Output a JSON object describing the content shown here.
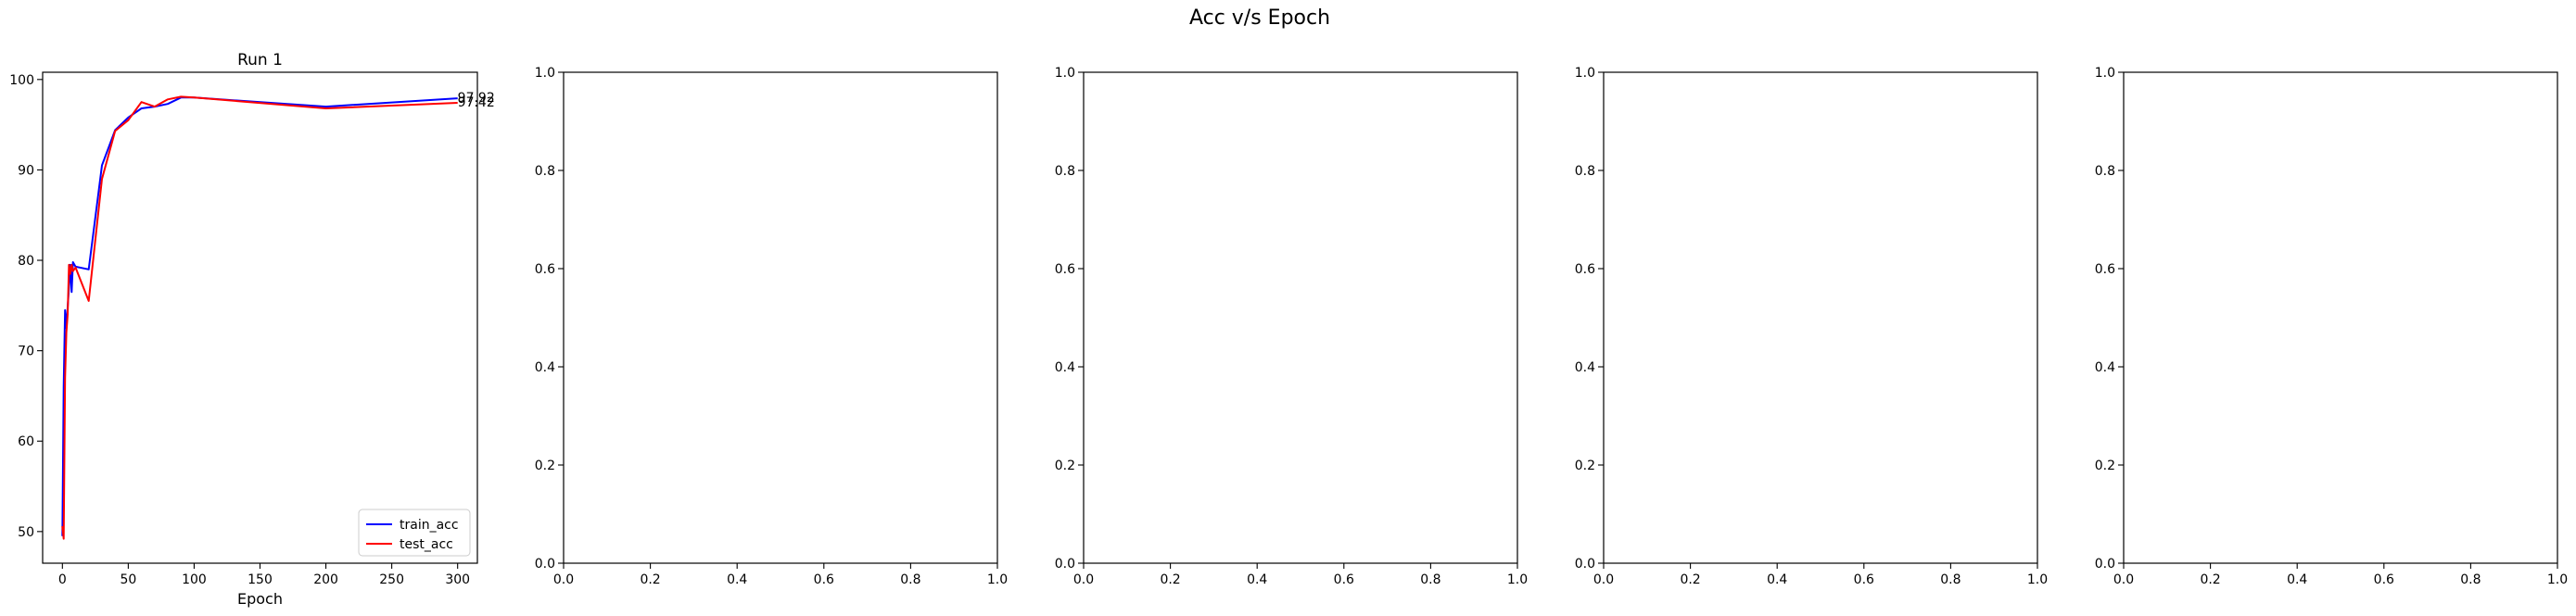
{
  "figure": {
    "suptitle": "Acc v/s Epoch"
  },
  "chart_data": [
    {
      "type": "line",
      "title": "Run 1",
      "xlabel": "Epoch",
      "ylabel": "",
      "xlim": [
        -15,
        315
      ],
      "ylim": [
        46.5,
        100.8
      ],
      "xticks": [
        0,
        50,
        100,
        150,
        200,
        250,
        300
      ],
      "yticks": [
        50,
        60,
        70,
        80,
        90,
        100
      ],
      "legend": "lower-right",
      "grid": false,
      "series": [
        {
          "name": "train_acc",
          "color": "#0000ff",
          "x": [
            0,
            1,
            2,
            3,
            4,
            5,
            6,
            7,
            8,
            10,
            20,
            30,
            40,
            50,
            60,
            70,
            80,
            90,
            100,
            200,
            300
          ],
          "y": [
            49.5,
            66.0,
            74.5,
            72.5,
            74.8,
            77.0,
            79.5,
            76.5,
            79.8,
            79.3,
            79.0,
            90.5,
            94.4,
            95.8,
            96.8,
            97.0,
            97.3,
            98.0,
            98.0,
            97.0,
            97.92
          ]
        },
        {
          "name": "test_acc",
          "color": "#ff0000",
          "x": [
            0,
            1,
            2,
            3,
            4,
            5,
            6,
            7,
            8,
            10,
            20,
            30,
            40,
            50,
            60,
            70,
            80,
            90,
            100,
            200,
            300
          ],
          "y": [
            50.6,
            49.2,
            67.0,
            72.0,
            74.0,
            79.5,
            78.5,
            79.5,
            78.8,
            79.2,
            75.5,
            89.0,
            94.3,
            95.5,
            97.5,
            97.0,
            97.8,
            98.1,
            98.0,
            96.8,
            97.42
          ]
        }
      ],
      "annotations": [
        "97.92",
        "97.42"
      ]
    },
    {
      "type": "line",
      "title": "",
      "xlim": [
        0,
        1
      ],
      "ylim": [
        0,
        1
      ],
      "xticks": [
        "0.0",
        "0.2",
        "0.4",
        "0.6",
        "0.8",
        "1.0"
      ],
      "yticks": [
        "0.0",
        "0.2",
        "0.4",
        "0.6",
        "0.8",
        "1.0"
      ]
    },
    {
      "type": "line",
      "title": "",
      "xlim": [
        0,
        1
      ],
      "ylim": [
        0,
        1
      ],
      "xticks": [
        "0.0",
        "0.2",
        "0.4",
        "0.6",
        "0.8",
        "1.0"
      ],
      "yticks": [
        "0.0",
        "0.2",
        "0.4",
        "0.6",
        "0.8",
        "1.0"
      ]
    },
    {
      "type": "line",
      "title": "",
      "xlim": [
        0,
        1
      ],
      "ylim": [
        0,
        1
      ],
      "xticks": [
        "0.0",
        "0.2",
        "0.4",
        "0.6",
        "0.8",
        "1.0"
      ],
      "yticks": [
        "0.0",
        "0.2",
        "0.4",
        "0.6",
        "0.8",
        "1.0"
      ]
    },
    {
      "type": "line",
      "title": "",
      "xlim": [
        0,
        1
      ],
      "ylim": [
        0,
        1
      ],
      "xticks": [
        "0.0",
        "0.2",
        "0.4",
        "0.6",
        "0.8",
        "1.0"
      ],
      "yticks": [
        "0.0",
        "0.2",
        "0.4",
        "0.6",
        "0.8",
        "1.0"
      ]
    }
  ]
}
